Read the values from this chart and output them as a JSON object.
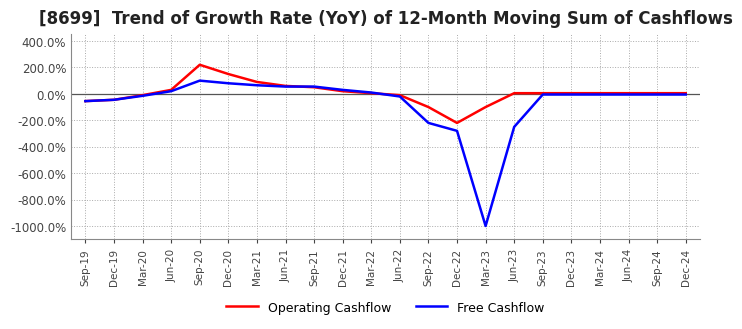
{
  "title": "[8699]  Trend of Growth Rate (YoY) of 12-Month Moving Sum of Cashflows",
  "title_fontsize": 12,
  "ylim": [
    -1100,
    450
  ],
  "yticks": [
    400,
    200,
    0,
    -200,
    -400,
    -600,
    -800,
    -1000
  ],
  "background_color": "#ffffff",
  "grid_color": "#aaaaaa",
  "x_labels": [
    "Sep-19",
    "Dec-19",
    "Mar-20",
    "Jun-20",
    "Sep-20",
    "Dec-20",
    "Mar-21",
    "Jun-21",
    "Sep-21",
    "Dec-21",
    "Mar-22",
    "Jun-22",
    "Sep-22",
    "Dec-22",
    "Mar-23",
    "Jun-23",
    "Sep-23",
    "Dec-23",
    "Mar-24",
    "Jun-24",
    "Sep-24",
    "Dec-24"
  ],
  "operating_cashflow": [
    -55,
    -45,
    -10,
    30,
    220,
    150,
    90,
    60,
    50,
    20,
    5,
    -10,
    -100,
    -220,
    -100,
    5,
    5,
    5,
    5,
    5,
    5,
    5
  ],
  "free_cashflow": [
    -55,
    -45,
    -15,
    20,
    100,
    80,
    65,
    55,
    55,
    30,
    10,
    -20,
    -220,
    -280,
    -1000,
    -250,
    -5,
    -5,
    -5,
    -5,
    -5,
    -5
  ],
  "operating_color": "#ff0000",
  "free_color": "#0000ff",
  "line_width": 1.8
}
